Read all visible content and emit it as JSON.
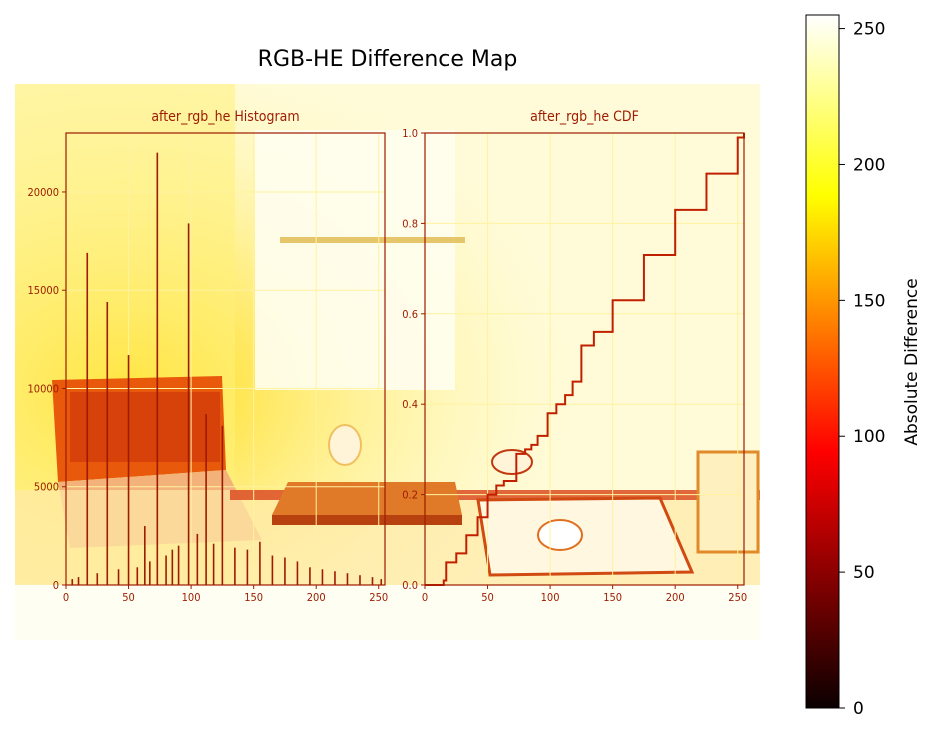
{
  "chart_data": [
    {
      "type": "heatmap",
      "title": "RGB-HE Difference Map",
      "colormap": "hot",
      "colorbar": {
        "label": "Absolute Difference",
        "range": [
          0,
          255
        ],
        "ticks": [
          "0",
          "50",
          "100",
          "150",
          "200",
          "250"
        ],
        "tick_values": [
          0,
          50,
          100,
          150,
          200,
          250
        ]
      },
      "axes_visible": false
    },
    {
      "type": "bar",
      "title": "after_rgb_he Histogram",
      "xlim": [
        0,
        255
      ],
      "ylim": [
        0,
        23000
      ],
      "xticks": [
        "0",
        "50",
        "100",
        "150",
        "200",
        "250"
      ],
      "yticks": [
        "0",
        "5000",
        "10000",
        "15000",
        "20000"
      ],
      "x": [
        5,
        10,
        17,
        25,
        33,
        42,
        50,
        57,
        63,
        67,
        73,
        80,
        85,
        90,
        98,
        105,
        112,
        118,
        125,
        135,
        145,
        155,
        165,
        175,
        185,
        195,
        205,
        215,
        225,
        235,
        245,
        252
      ],
      "values": [
        300,
        400,
        16900,
        600,
        14400,
        800,
        11700,
        900,
        3000,
        1200,
        22000,
        1500,
        1800,
        2000,
        18400,
        2600,
        8700,
        2100,
        8100,
        1900,
        1800,
        2200,
        1500,
        1400,
        1200,
        900,
        800,
        700,
        600,
        500,
        400,
        300
      ]
    },
    {
      "type": "line",
      "title": "after_rgb_he CDF",
      "xlim": [
        0,
        255
      ],
      "ylim": [
        0.0,
        1.0
      ],
      "xticks": [
        "0",
        "50",
        "100",
        "150",
        "200",
        "250"
      ],
      "yticks": [
        "0.0",
        "0.2",
        "0.4",
        "0.6",
        "0.8",
        "1.0"
      ],
      "x": [
        0,
        15,
        17,
        25,
        33,
        42,
        50,
        57,
        63,
        67,
        73,
        80,
        85,
        90,
        98,
        105,
        112,
        118,
        125,
        135,
        150,
        175,
        200,
        225,
        250,
        255
      ],
      "y": [
        0.0,
        0.01,
        0.05,
        0.07,
        0.11,
        0.15,
        0.2,
        0.22,
        0.23,
        0.23,
        0.29,
        0.3,
        0.31,
        0.33,
        0.38,
        0.4,
        0.42,
        0.45,
        0.53,
        0.56,
        0.63,
        0.73,
        0.83,
        0.91,
        0.99,
        1.0
      ]
    }
  ]
}
